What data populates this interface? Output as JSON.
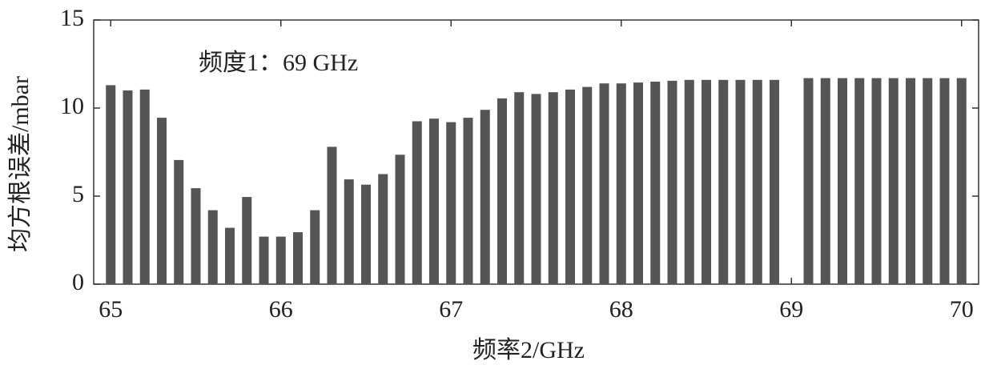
{
  "chart_data": {
    "type": "bar",
    "annotation": "频度1：69 GHz",
    "xlabel": "频率2/GHz",
    "ylabel": "均方根误差/mbar",
    "color": "#555555",
    "x": [
      65.0,
      65.1,
      65.2,
      65.3,
      65.4,
      65.5,
      65.6,
      65.7,
      65.8,
      65.9,
      66.0,
      66.1,
      66.2,
      66.3,
      66.4,
      66.5,
      66.6,
      66.7,
      66.8,
      66.9,
      67.0,
      67.1,
      67.2,
      67.3,
      67.4,
      67.5,
      67.6,
      67.7,
      67.8,
      67.9,
      68.0,
      68.1,
      68.2,
      68.3,
      68.4,
      68.5,
      68.6,
      68.7,
      68.8,
      68.9,
      69.0,
      69.1,
      69.2,
      69.3,
      69.4,
      69.5,
      69.6,
      69.7,
      69.8,
      69.9,
      70.0
    ],
    "values": [
      11.3,
      11.0,
      11.05,
      9.45,
      7.05,
      5.45,
      4.2,
      3.2,
      4.95,
      2.7,
      2.7,
      2.95,
      4.2,
      7.8,
      5.95,
      5.65,
      6.25,
      7.35,
      9.25,
      9.4,
      9.2,
      9.45,
      9.9,
      10.55,
      10.9,
      10.8,
      10.9,
      11.05,
      11.2,
      11.4,
      11.4,
      11.45,
      11.5,
      11.55,
      11.6,
      11.6,
      11.6,
      11.6,
      11.6,
      11.6,
      null,
      11.7,
      11.7,
      11.7,
      11.7,
      11.7,
      11.7,
      11.7,
      11.7,
      11.7,
      11.7
    ],
    "xlim": [
      64.9,
      70.1
    ],
    "xticks": [
      65,
      66,
      67,
      68,
      69,
      70
    ],
    "ylim": [
      0,
      15
    ],
    "yticks": [
      0,
      5,
      10,
      15
    ]
  }
}
